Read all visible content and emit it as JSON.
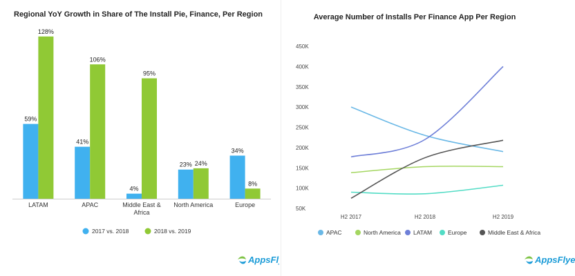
{
  "colors": {
    "bar_series_1": "#40b1ef",
    "bar_series_2": "#90c935",
    "APAC": "#6ab8e6",
    "North America": "#a4d660",
    "LATAM": "#6e7fd8",
    "Europe": "#52dcc5",
    "Middle East & Africa": "#555555"
  },
  "brand": {
    "name": "AppsFlyer",
    "icon": "appsflyer-logo-icon"
  },
  "chart_data": [
    {
      "type": "bar",
      "title": "Regional YoY Growth in Share of The Install Pie, Finance, Per Region",
      "categories": [
        "LATAM",
        "APAC",
        "Middle East & Africa",
        "North America",
        "Europe"
      ],
      "category_lines": [
        [
          "LATAM"
        ],
        [
          "APAC"
        ],
        [
          "Middle East &",
          "Africa"
        ],
        [
          "North America"
        ],
        [
          "Europe"
        ]
      ],
      "series": [
        {
          "name": "2017 vs. 2018",
          "values": [
            59,
            41,
            4,
            23,
            34
          ],
          "labels": [
            "59%",
            "41%",
            "4%",
            "23%",
            "34%"
          ]
        },
        {
          "name": "2018 vs. 2019",
          "values": [
            128,
            106,
            95,
            24,
            8
          ],
          "labels": [
            "128%",
            "106%",
            "95%",
            "24%",
            "8%"
          ]
        }
      ],
      "ylim": [
        0,
        135
      ],
      "legend": "bottom"
    },
    {
      "type": "line",
      "title": "Average Number of Installs Per Finance App Per Region",
      "x": [
        "H2 2017",
        "H2 2018",
        "H2 2019"
      ],
      "yticks": [
        "50K",
        "100K",
        "150K",
        "200K",
        "250K",
        "300K",
        "350K",
        "400K",
        "450K"
      ],
      "ylim": [
        50000,
        450000
      ],
      "series": [
        {
          "name": "APAC",
          "values": [
            300000,
            230000,
            190000
          ]
        },
        {
          "name": "North America",
          "values": [
            138000,
            153000,
            153000
          ]
        },
        {
          "name": "LATAM",
          "values": [
            177000,
            220000,
            400000
          ]
        },
        {
          "name": "Europe",
          "values": [
            90000,
            86000,
            107000
          ]
        },
        {
          "name": "Middle East & Africa",
          "values": [
            75000,
            175000,
            218000
          ]
        }
      ],
      "legend": "bottom"
    }
  ]
}
